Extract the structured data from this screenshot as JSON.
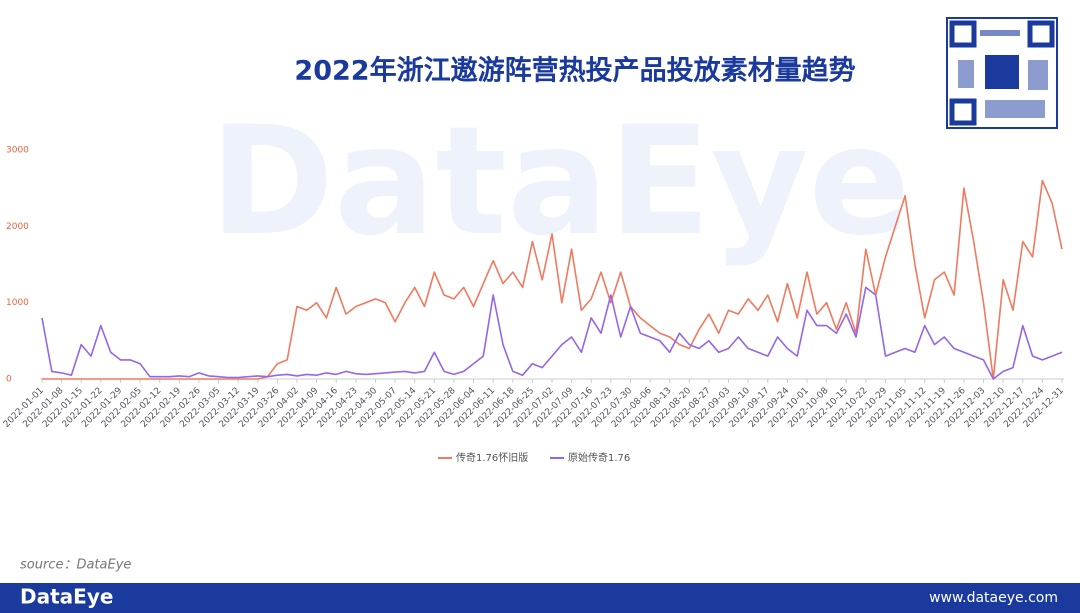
{
  "chart_data": {
    "type": "line",
    "title": "2022年浙江遨游阵营热投产品投放素材量趋势",
    "watermark": "DataEye",
    "source": "source：DataEye",
    "footer_logo": "DataEye",
    "footer_url": "www.dataeye.com",
    "categories": [
      "2022-01-01",
      null,
      "2022-01-08",
      null,
      "2022-01-15",
      null,
      "2022-01-22",
      null,
      "2022-01-29",
      null,
      "2022-02-05",
      null,
      "2022-02-12",
      null,
      "2022-02-19",
      null,
      "2022-02-26",
      null,
      "2022-03-05",
      null,
      "2022-03-12",
      null,
      "2022-03-19",
      null,
      "2022-03-26",
      null,
      "2022-04-02",
      null,
      "2022-04-09",
      null,
      "2022-04-16",
      null,
      "2022-04-23",
      null,
      "2022-04-30",
      null,
      "2022-05-07",
      null,
      "2022-05-14",
      null,
      "2022-05-21",
      null,
      "2022-05-28",
      null,
      "2022-06-04",
      null,
      "2022-06-11",
      null,
      "2022-06-18",
      null,
      "2022-06-25",
      null,
      "2022-07-02",
      null,
      "2022-07-09",
      null,
      "2022-07-16",
      null,
      "2022-07-23",
      null,
      "2022-07-30",
      null,
      "2022-08-06",
      null,
      "2022-08-13",
      null,
      "2022-08-20",
      null,
      "2022-08-27",
      null,
      "2022-09-03",
      null,
      "2022-09-10",
      null,
      "2022-09-17",
      null,
      "2022-09-24",
      null,
      "2022-10-01",
      null,
      "2022-10-08",
      null,
      "2022-10-15",
      null,
      "2022-10-22",
      null,
      "2022-10-29",
      null,
      "2022-11-05",
      null,
      "2022-11-12",
      null,
      "2022-11-19",
      null,
      "2022-11-26",
      null,
      "2022-12-03",
      null,
      "2022-12-10",
      null,
      "2022-12-17",
      null,
      "2022-12-24",
      null,
      "2022-12-31"
    ],
    "series": [
      {
        "name": "传奇1.76怀旧版",
        "color": "#ef7a5e",
        "values": [
          0,
          0,
          0,
          0,
          0,
          0,
          0,
          0,
          0,
          0,
          0,
          0,
          0,
          0,
          0,
          0,
          0,
          0,
          0,
          0,
          0,
          0,
          0,
          30,
          200,
          250,
          950,
          900,
          1000,
          800,
          1200,
          850,
          950,
          1000,
          1050,
          1000,
          750,
          1000,
          1200,
          950,
          1400,
          1100,
          1050,
          1200,
          950,
          1250,
          1550,
          1250,
          1400,
          1200,
          1800,
          1300,
          1900,
          1000,
          1700,
          900,
          1050,
          1400,
          1000,
          1400,
          950,
          800,
          700,
          600,
          550,
          450,
          400,
          650,
          850,
          600,
          900,
          850,
          1050,
          900,
          1100,
          750,
          1250,
          800,
          1400,
          850,
          1000,
          650,
          1000,
          600,
          1700,
          1100,
          1600,
          2000,
          2400,
          1500,
          800,
          1300,
          1400,
          1100,
          2500,
          1800,
          1000,
          0,
          1300,
          900,
          1800,
          1600,
          2600,
          2300,
          1700
        ]
      },
      {
        "name": "原始传奇1.76",
        "color": "#9466e8",
        "values": [
          800,
          100,
          80,
          50,
          450,
          300,
          700,
          350,
          250,
          250,
          200,
          30,
          30,
          30,
          40,
          30,
          80,
          40,
          30,
          20,
          20,
          30,
          40,
          30,
          50,
          60,
          40,
          60,
          50,
          80,
          60,
          100,
          70,
          60,
          70,
          80,
          90,
          100,
          80,
          100,
          350,
          100,
          60,
          100,
          200,
          300,
          1100,
          450,
          100,
          50,
          200,
          150,
          300,
          450,
          550,
          350,
          800,
          600,
          1100,
          550,
          950,
          600,
          550,
          500,
          350,
          600,
          450,
          400,
          500,
          350,
          400,
          550,
          400,
          350,
          300,
          550,
          400,
          300,
          900,
          700,
          700,
          600,
          850,
          550,
          1200,
          1100,
          300,
          350,
          400,
          350,
          700,
          450,
          550,
          400,
          350,
          300,
          250,
          0,
          100,
          150,
          700,
          300,
          250,
          300,
          350
        ]
      }
    ],
    "ylim": [
      0,
      3000
    ],
    "yticks": [
      0,
      1000,
      2000,
      3000
    ]
  }
}
